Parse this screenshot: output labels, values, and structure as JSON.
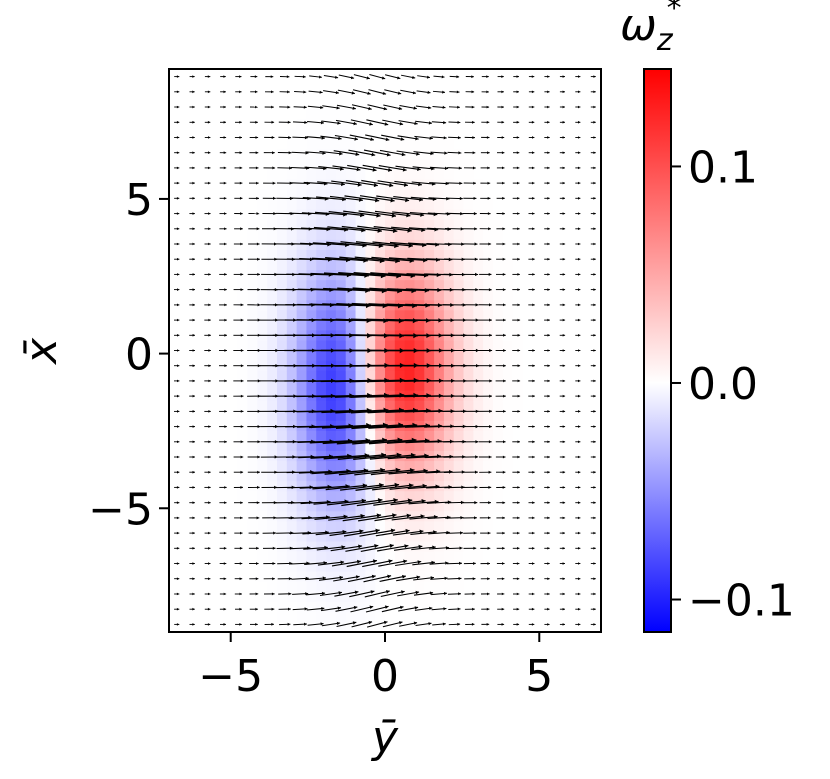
{
  "chart_data": {
    "type": "heatmap",
    "overlay": "quiver",
    "title": "",
    "xlabel": "ȳ",
    "ylabel": "x̄",
    "xlim": [
      -7,
      7
    ],
    "ylim": [
      -9,
      9.2
    ],
    "xticks": [
      {
        "value": -5,
        "label": "−5"
      },
      {
        "value": 0,
        "label": "0"
      },
      {
        "value": 5,
        "label": "5"
      }
    ],
    "yticks": [
      {
        "value": 5,
        "label": "5"
      },
      {
        "value": 0,
        "label": "0"
      },
      {
        "value": -5,
        "label": "−5"
      }
    ],
    "colormap": "bwr",
    "colormap_colors": {
      "low": "#0000ff",
      "mid": "#ffffff",
      "high": "#ff0000"
    },
    "colorbar": {
      "label": "ω_z*",
      "label_main": "ω",
      "label_sub": "z",
      "label_sup": "*",
      "range": [
        -0.115,
        0.145
      ],
      "ticks": [
        {
          "value": 0.1,
          "label": "0.1"
        },
        {
          "value": 0.0,
          "label": "0.0"
        },
        {
          "value": -0.1,
          "label": "−0.1"
        }
      ]
    },
    "vortices": [
      {
        "sign": "negative",
        "center": [
          -1.4,
          -1.0
        ],
        "peak": -0.11
      },
      {
        "sign": "positive",
        "center": [
          0.5,
          -0.5
        ],
        "peak": 0.14
      }
    ]
  }
}
